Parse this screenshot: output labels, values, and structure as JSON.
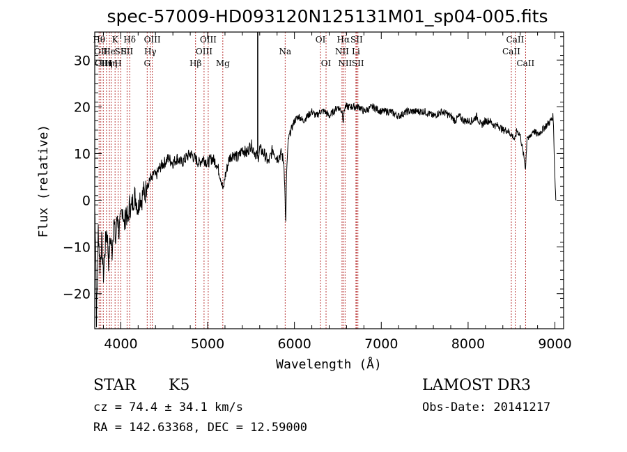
{
  "chart_data": {
    "type": "line",
    "title": "spec-57009-HD093120N125131M01_sp04-005.fits",
    "xlabel": "Wavelength (Å)",
    "ylabel": "Flux (relative)",
    "xlim": [
      3700,
      9100
    ],
    "ylim": [
      -27.5,
      36
    ],
    "xticks": [
      4000,
      5000,
      6000,
      7000,
      8000,
      9000
    ],
    "yticks": [
      -20,
      -10,
      0,
      10,
      20,
      30
    ],
    "xtick_labels": [
      "4000",
      "5000",
      "6000",
      "7000",
      "8000",
      "9000"
    ],
    "ytick_labels": [
      "−20",
      "−10",
      "0",
      "10",
      "20",
      "30"
    ],
    "series": [
      {
        "name": "flux",
        "points": [
          [
            3700,
            -2
          ],
          [
            3710,
            -8
          ],
          [
            3720,
            -25
          ],
          [
            3730,
            -18
          ],
          [
            3740,
            -6
          ],
          [
            3760,
            -14
          ],
          [
            3780,
            -9
          ],
          [
            3800,
            -16
          ],
          [
            3820,
            -10
          ],
          [
            3840,
            -6
          ],
          [
            3860,
            -13
          ],
          [
            3880,
            -8
          ],
          [
            3900,
            -11
          ],
          [
            3920,
            -4
          ],
          [
            3940,
            -9
          ],
          [
            3960,
            -3
          ],
          [
            3980,
            -7
          ],
          [
            4000,
            -4
          ],
          [
            4020,
            -1
          ],
          [
            4040,
            -6
          ],
          [
            4060,
            -2
          ],
          [
            4080,
            -5
          ],
          [
            4100,
            -1
          ],
          [
            4120,
            -2
          ],
          [
            4140,
            0
          ],
          [
            4160,
            1
          ],
          [
            4180,
            0
          ],
          [
            4200,
            -2
          ],
          [
            4220,
            1
          ],
          [
            4240,
            0
          ],
          [
            4260,
            2
          ],
          [
            4280,
            1
          ],
          [
            4300,
            4
          ],
          [
            4320,
            3
          ],
          [
            4340,
            5
          ],
          [
            4360,
            4
          ],
          [
            4380,
            6
          ],
          [
            4400,
            5
          ],
          [
            4450,
            7
          ],
          [
            4500,
            8
          ],
          [
            4550,
            9
          ],
          [
            4600,
            8
          ],
          [
            4650,
            9
          ],
          [
            4700,
            8
          ],
          [
            4750,
            9
          ],
          [
            4800,
            10
          ],
          [
            4850,
            9
          ],
          [
            4900,
            8
          ],
          [
            4950,
            9
          ],
          [
            5000,
            8
          ],
          [
            5050,
            9
          ],
          [
            5100,
            8
          ],
          [
            5150,
            5
          ],
          [
            5180,
            2
          ],
          [
            5200,
            5
          ],
          [
            5250,
            9
          ],
          [
            5300,
            10
          ],
          [
            5350,
            9
          ],
          [
            5400,
            11
          ],
          [
            5450,
            10
          ],
          [
            5500,
            12
          ],
          [
            5550,
            10
          ],
          [
            5580,
            9
          ],
          [
            5600,
            11
          ],
          [
            5650,
            10
          ],
          [
            5700,
            8
          ],
          [
            5750,
            11
          ],
          [
            5800,
            9
          ],
          [
            5850,
            10
          ],
          [
            5880,
            8
          ],
          [
            5900,
            -5
          ],
          [
            5910,
            6
          ],
          [
            5930,
            13
          ],
          [
            5960,
            15
          ],
          [
            6000,
            17
          ],
          [
            6050,
            18
          ],
          [
            6100,
            17
          ],
          [
            6150,
            18
          ],
          [
            6200,
            19
          ],
          [
            6250,
            18
          ],
          [
            6300,
            19
          ],
          [
            6350,
            19
          ],
          [
            6400,
            18
          ],
          [
            6450,
            19
          ],
          [
            6500,
            20
          ],
          [
            6550,
            19
          ],
          [
            6563,
            17
          ],
          [
            6580,
            20
          ],
          [
            6650,
            20
          ],
          [
            6700,
            20
          ],
          [
            6750,
            20
          ],
          [
            6800,
            19
          ],
          [
            6900,
            20
          ],
          [
            7000,
            19
          ],
          [
            7100,
            19
          ],
          [
            7200,
            18
          ],
          [
            7300,
            19
          ],
          [
            7400,
            19
          ],
          [
            7500,
            19
          ],
          [
            7600,
            18
          ],
          [
            7700,
            19
          ],
          [
            7800,
            18
          ],
          [
            7850,
            17
          ],
          [
            7900,
            18
          ],
          [
            7950,
            17
          ],
          [
            8000,
            17
          ],
          [
            8050,
            17
          ],
          [
            8100,
            18
          ],
          [
            8150,
            16
          ],
          [
            8200,
            17
          ],
          [
            8250,
            17
          ],
          [
            8300,
            16
          ],
          [
            8350,
            16
          ],
          [
            8400,
            15
          ],
          [
            8450,
            15
          ],
          [
            8500,
            14
          ],
          [
            8542,
            13
          ],
          [
            8560,
            15
          ],
          [
            8600,
            14
          ],
          [
            8662,
            7
          ],
          [
            8680,
            14
          ],
          [
            8700,
            13
          ],
          [
            8750,
            15
          ],
          [
            8800,
            14
          ],
          [
            8850,
            15
          ],
          [
            8900,
            16
          ],
          [
            8950,
            17
          ],
          [
            8980,
            18
          ],
          [
            9000,
            5
          ],
          [
            9010,
            0
          ]
        ]
      }
    ],
    "spikes": [
      {
        "x": 5577,
        "y": 36
      }
    ],
    "line_markers": [
      {
        "x": 3750,
        "labels": [
          "Hθ"
        ],
        "row": 0
      },
      {
        "x": 3770,
        "labels": [
          "OII"
        ],
        "row": 1
      },
      {
        "x": 3798,
        "labels": [
          "OIII"
        ],
        "row": 2
      },
      {
        "x": 3835,
        "labels": [
          "Hη"
        ],
        "row": 2
      },
      {
        "x": 3869,
        "labels": [
          "He"
        ],
        "row": 1
      },
      {
        "x": 3889,
        "labels": [
          "Hη"
        ],
        "row": 2
      },
      {
        "x": 3934,
        "labels": [
          "K"
        ],
        "row": 0
      },
      {
        "x": 3969,
        "labels": [
          "H"
        ],
        "row": 2
      },
      {
        "x": 4000,
        "labels": [
          "SII"
        ],
        "row": 1
      },
      {
        "x": 4102,
        "labels": [
          "Hδ"
        ],
        "row": 0
      },
      {
        "x": 4072,
        "labels": [
          "SII"
        ],
        "row": 1
      },
      {
        "x": 4304,
        "labels": [
          "G"
        ],
        "row": 2
      },
      {
        "x": 4340,
        "labels": [
          "Hγ"
        ],
        "row": 1
      },
      {
        "x": 4363,
        "labels": [
          "OIII"
        ],
        "row": 0
      },
      {
        "x": 4861,
        "labels": [
          "Hβ"
        ],
        "row": 2
      },
      {
        "x": 4959,
        "labels": [
          "OIII"
        ],
        "row": 1
      },
      {
        "x": 5007,
        "labels": [
          "OIII"
        ],
        "row": 0
      },
      {
        "x": 5175,
        "labels": [
          "Mg"
        ],
        "row": 2
      },
      {
        "x": 5893,
        "labels": [
          "Na"
        ],
        "row": 1
      },
      {
        "x": 6300,
        "labels": [
          "OI"
        ],
        "row": 0
      },
      {
        "x": 6364,
        "labels": [
          "OI"
        ],
        "row": 2
      },
      {
        "x": 6548,
        "labels": [
          "NII"
        ],
        "row": 1
      },
      {
        "x": 6563,
        "labels": [
          "Hα"
        ],
        "row": 0
      },
      {
        "x": 6583,
        "labels": [
          "NII"
        ],
        "row": 2
      },
      {
        "x": 6708,
        "labels": [
          "Li"
        ],
        "row": 1
      },
      {
        "x": 6716,
        "labels": [
          "SII"
        ],
        "row": 0
      },
      {
        "x": 6731,
        "labels": [
          "SII"
        ],
        "row": 2
      },
      {
        "x": 8498,
        "labels": [
          "CaII"
        ],
        "row": 1
      },
      {
        "x": 8542,
        "labels": [
          "CaII"
        ],
        "row": 0
      },
      {
        "x": 8662,
        "labels": [
          "CaII"
        ],
        "row": 2
      }
    ],
    "marker_color": "#b22222",
    "line_color": "#000000"
  },
  "info": {
    "object_type": "STAR",
    "subclass": "K5",
    "survey": "LAMOST DR3",
    "cz_line": "cz = 74.4 ± 34.1 km/s",
    "obs_date": "Obs-Date: 20141217",
    "radec_line": "RA = 142.63368, DEC =  12.59000"
  }
}
